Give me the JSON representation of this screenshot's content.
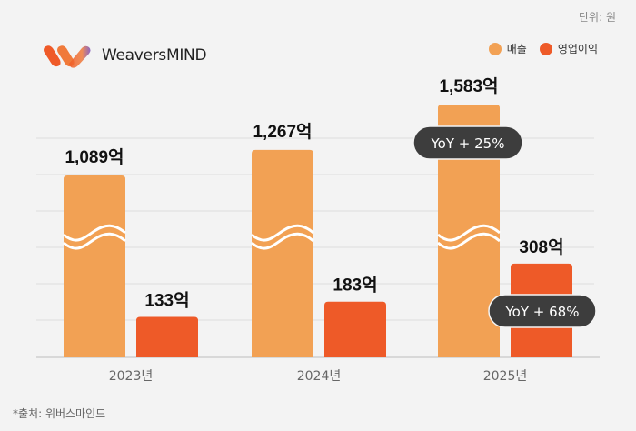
{
  "unit_label": "단위: 원",
  "brand": {
    "name": "WeaversMIND"
  },
  "source": "*출처: 위버스마인드",
  "colors": {
    "revenue": "#F2A154",
    "operating_profit": "#EE5A28",
    "background": "#F3F3F3",
    "pill": "#3d3d3d"
  },
  "chart_data": {
    "type": "bar",
    "categories": [
      "2023년",
      "2024년",
      "2025년"
    ],
    "series": [
      {
        "name": "매출",
        "values": [
          1089,
          1267,
          1583
        ],
        "labels": [
          "1,089억",
          "1,267억",
          "1,583억"
        ],
        "axis_break": true
      },
      {
        "name": "영업이익",
        "values": [
          133,
          183,
          308
        ],
        "labels": [
          "133억",
          "183억",
          "308억"
        ]
      }
    ],
    "annotations": [
      {
        "series": "매출",
        "category": "2025년",
        "text": "YoY + 25%"
      },
      {
        "series": "영업이익",
        "category": "2025년",
        "text": "YoY + 68%"
      }
    ],
    "legend": "top-right",
    "grid": true,
    "xlabel": "",
    "ylabel": ""
  }
}
